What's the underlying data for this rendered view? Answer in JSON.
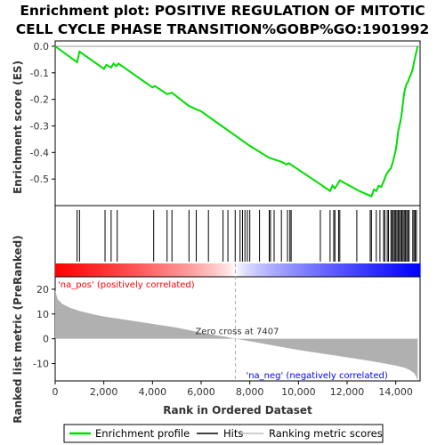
{
  "chart_data": [
    {
      "panel": "enrichment",
      "type": "line",
      "title_line1": "Enrichment plot: POSITIVE REGULATION OF MITOTIC",
      "title_line2": "CELL CYCLE PHASE TRANSITION%GOBP%GO:1901992",
      "ylabel": "Enrichment score (ES)",
      "ylim": [
        -0.6,
        0.02
      ],
      "yticks": [
        0.0,
        -0.1,
        -0.2,
        -0.3,
        -0.4,
        -0.5
      ],
      "ytick_labels": [
        "0.0",
        "-0.1",
        "-0.2",
        "-0.3",
        "-0.4",
        "-0.5"
      ],
      "xlim": [
        0,
        15000
      ],
      "color": "#00dd00",
      "series": [
        {
          "x": [
            0,
            900,
            1000,
            2000,
            2100,
            2300,
            2400,
            2500,
            2600,
            4000,
            4100,
            4600,
            4800,
            5500,
            6000,
            7000,
            8000,
            8800,
            9300,
            9500,
            9600,
            10900,
            11300,
            11400,
            11500,
            11600,
            11700,
            12500,
            13000,
            13100,
            13200,
            13300,
            13400,
            13500,
            13600,
            13700,
            13800,
            13900,
            14000,
            14050,
            14100,
            14150,
            14200,
            14250,
            14300,
            14350,
            14400,
            14450,
            14500,
            14550,
            14600,
            14650,
            14700,
            14750,
            14800,
            14850,
            14900
          ],
          "y": [
            0.0,
            -0.06,
            -0.02,
            -0.085,
            -0.07,
            -0.08,
            -0.065,
            -0.075,
            -0.065,
            -0.155,
            -0.15,
            -0.18,
            -0.175,
            -0.225,
            -0.245,
            -0.31,
            -0.375,
            -0.42,
            -0.435,
            -0.445,
            -0.44,
            -0.52,
            -0.545,
            -0.525,
            -0.535,
            -0.52,
            -0.505,
            -0.545,
            -0.565,
            -0.54,
            -0.545,
            -0.525,
            -0.53,
            -0.51,
            -0.485,
            -0.47,
            -0.46,
            -0.43,
            -0.39,
            -0.36,
            -0.32,
            -0.3,
            -0.28,
            -0.25,
            -0.21,
            -0.175,
            -0.155,
            -0.14,
            -0.135,
            -0.12,
            -0.11,
            -0.1,
            -0.085,
            -0.06,
            -0.04,
            -0.02,
            0.0
          ]
        }
      ]
    },
    {
      "panel": "hits",
      "type": "scatter",
      "hit_ranks": [
        900,
        1000,
        2050,
        2300,
        2550,
        4050,
        4600,
        4800,
        5500,
        5800,
        6300,
        6900,
        7100,
        7400,
        7600,
        7700,
        7800,
        7900,
        8000,
        8400,
        8800,
        8850,
        9000,
        9300,
        9550,
        9650,
        9700,
        10900,
        11300,
        11450,
        11500,
        11650,
        11700,
        12400,
        12950,
        13000,
        13200,
        13350,
        13500,
        13550,
        13650,
        13700,
        13800,
        13850,
        13900,
        13950,
        14000,
        14050,
        14100,
        14150,
        14200,
        14250,
        14300,
        14350,
        14400,
        14450,
        14500,
        14550,
        14700,
        14750,
        14800,
        14850
      ]
    },
    {
      "panel": "ranked_metric",
      "type": "area",
      "ylabel": "Ranked list metric (PreRanked)",
      "xlabel": "Rank in Ordered Dataset",
      "ylim": [
        -17,
        25
      ],
      "yticks": [
        20,
        10,
        0,
        -10
      ],
      "ytick_labels": [
        "20",
        "10",
        "0",
        "-10"
      ],
      "xticks": [
        0,
        2000,
        4000,
        6000,
        8000,
        10000,
        12000,
        14000
      ],
      "xtick_labels": [
        "0",
        "2,000",
        "4,000",
        "6,000",
        "8,000",
        "10,000",
        "12,000",
        "14,000"
      ],
      "xlim": [
        0,
        15000
      ],
      "x": [
        0,
        100,
        300,
        600,
        1000,
        1500,
        2000,
        3000,
        4000,
        5000,
        6000,
        7000,
        7407,
        8000,
        9000,
        10000,
        11000,
        12000,
        13000,
        14000,
        14400,
        14600,
        14750,
        14850,
        14900
      ],
      "values": [
        19.5,
        16,
        14,
        12.5,
        11.2,
        10,
        9,
        7.5,
        6,
        4.5,
        2.5,
        0.8,
        0,
        -1,
        -2.8,
        -4.5,
        -6,
        -7.5,
        -9,
        -10.8,
        -11.8,
        -12.8,
        -13.8,
        -15.5,
        -17
      ],
      "fill": "#b0b0b0",
      "zero_cross_label": "Zero cross at 7407",
      "zero_cross_rank": 7407,
      "pos_label": "'na_pos' (positively correlated)",
      "neg_label": "'na_neg' (negatively correlated)",
      "pos_color": "#ff0000",
      "neg_color": "#0000ff"
    }
  ],
  "legend": {
    "items": [
      {
        "label": "Enrichment profile",
        "color": "#00dd00"
      },
      {
        "label": "Hits",
        "color": "#000000"
      },
      {
        "label": "Ranking metric scores",
        "color": "#c0c0c0"
      }
    ]
  }
}
